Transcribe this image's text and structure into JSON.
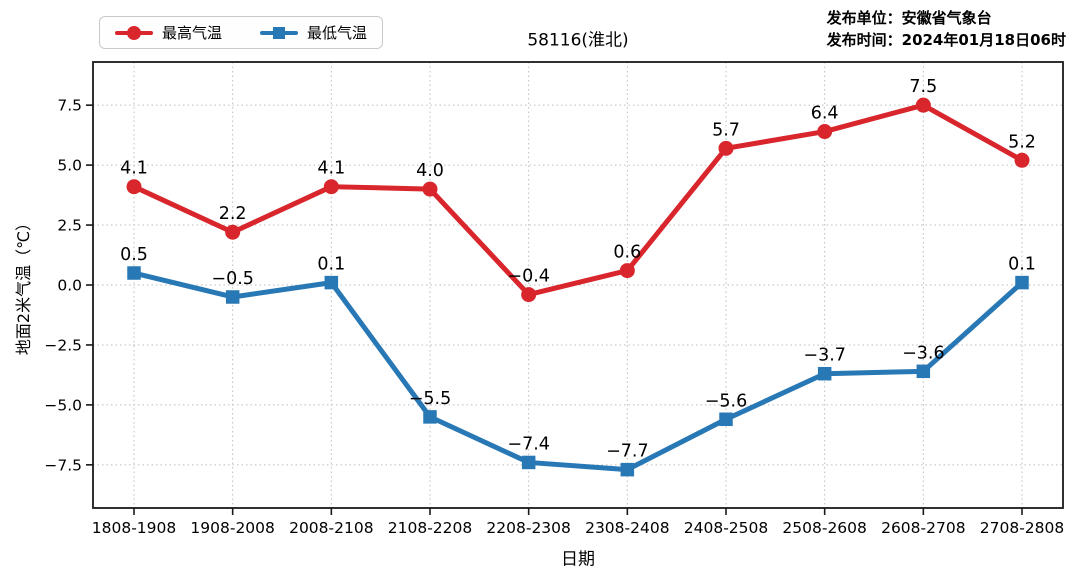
{
  "header": {
    "title": "58116(淮北)",
    "publisher_org": "发布单位：安徽省气象台",
    "publisher_time": "发布时间：2024年01月18日06时"
  },
  "legend": [
    {
      "label": "最高气温",
      "color": "#d8262c",
      "marker": "circle"
    },
    {
      "label": "最低气温",
      "color": "#2878b5",
      "marker": "square"
    }
  ],
  "chart_data": {
    "type": "line",
    "title": "58116(淮北)",
    "xlabel": "日期",
    "ylabel": "地面2米气温（℃）",
    "categories": [
      "1808-1908",
      "1908-2008",
      "2008-2108",
      "2108-2208",
      "2208-2308",
      "2308-2408",
      "2408-2508",
      "2508-2608",
      "2608-2708",
      "2708-2808"
    ],
    "series": [
      {
        "name": "最高气温",
        "color": "#d8262c",
        "marker": "circle",
        "values": [
          4.1,
          2.2,
          4.1,
          4.0,
          -0.4,
          0.6,
          5.7,
          6.4,
          7.5,
          5.2
        ]
      },
      {
        "name": "最低气温",
        "color": "#2878b5",
        "marker": "square",
        "values": [
          0.5,
          -0.5,
          0.1,
          -5.5,
          -7.4,
          -7.7,
          -5.6,
          -3.7,
          -3.6,
          0.1
        ]
      }
    ],
    "yticks": [
      7.5,
      5.0,
      2.5,
      0.0,
      -2.5,
      -5.0,
      -7.5
    ],
    "ylim": [
      -9.3,
      9.3
    ],
    "grid": true,
    "grid_style": "dotted",
    "legend_position": "top-left-outside",
    "data_labels": true
  }
}
